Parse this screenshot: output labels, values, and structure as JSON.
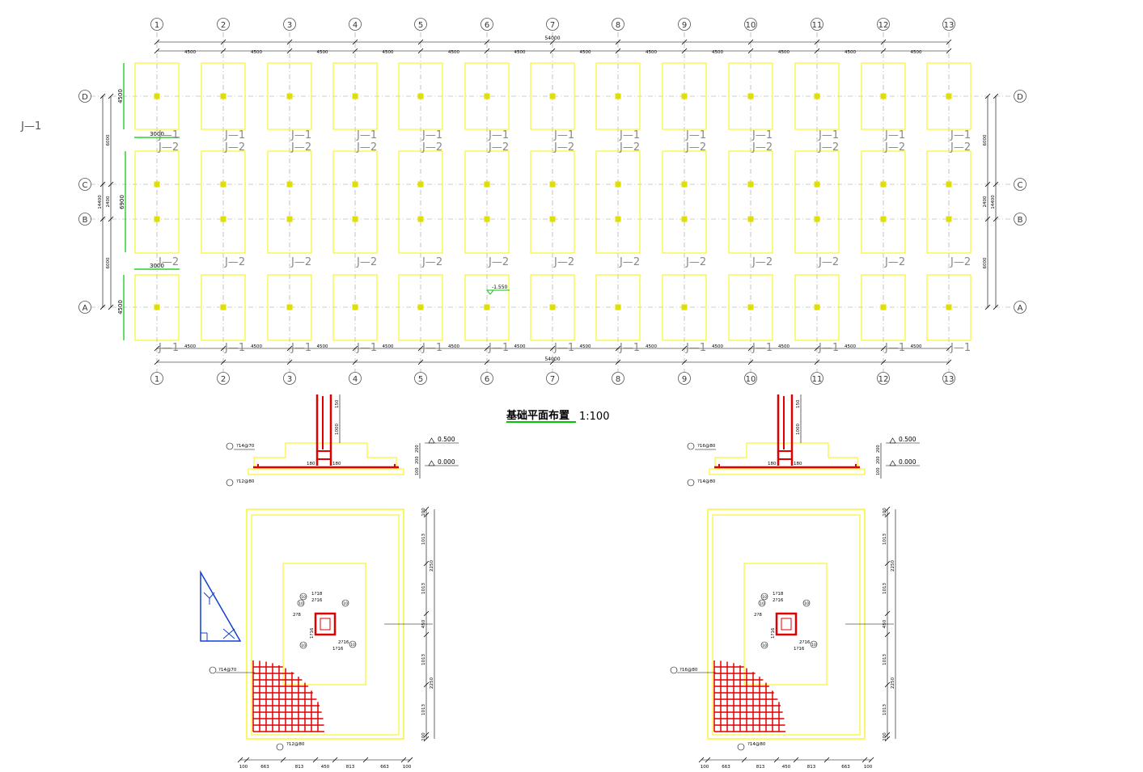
{
  "plan": {
    "side_label": "J—1",
    "axis_x": [
      "1",
      "2",
      "3",
      "4",
      "5",
      "6",
      "7",
      "8",
      "9",
      "10",
      "11",
      "12",
      "13"
    ],
    "axis_y": [
      "D",
      "C",
      "B",
      "A"
    ],
    "bay_dims": [
      "4500",
      "4500",
      "4500",
      "4500",
      "4500",
      "4500",
      "4500",
      "4500",
      "4500",
      "4500",
      "4500",
      "4500"
    ],
    "total_dim": "54000",
    "left_dims": [
      "6000",
      "2400",
      "6000"
    ],
    "left_total": "14400",
    "right_dims": [
      "6000",
      "2400",
      "6000"
    ],
    "right_total": "14400",
    "green_dim_h": "3000",
    "green_dim_v1": "4500",
    "green_dim_v2": "6900",
    "green_dim_v3": "4500",
    "label_j1": "J—1",
    "label_j2": "J—2",
    "elevation_mark": "-1.550"
  },
  "title": {
    "text": "基础平面布置",
    "scale": "1:100"
  },
  "detail_left": {
    "rebar_top": "?14@70",
    "rebar_bottom": "?12@80",
    "rebar_plan_1": "?14@70",
    "rebar_plan_2": "?12@80",
    "elev_1": "0.500",
    "elev_2": "0.000",
    "col_dims": [
      "180",
      "180"
    ],
    "vert_dims": [
      "150",
      "1000"
    ],
    "side_dims": [
      "200",
      "200",
      "100"
    ],
    "bottom_dims": [
      "100",
      "663",
      "813",
      "450",
      "813",
      "663",
      "100"
    ],
    "right_dims": [
      "100",
      "1013",
      "1013",
      "450",
      "1013",
      "1013",
      "100"
    ],
    "right_totals": [
      "2250",
      "2250"
    ],
    "col_labels": [
      "1?18",
      "2?16",
      "2?8",
      "1?16",
      "2?16",
      "1?16"
    ],
    "col_marks": [
      "10",
      "10",
      "10",
      "10",
      "10"
    ]
  },
  "detail_right": {
    "rebar_top": "?16@80",
    "rebar_bottom": "?14@80",
    "rebar_plan_1": "?16@80",
    "rebar_plan_2": "?14@80",
    "elev_1": "0.500",
    "elev_2": "0.000",
    "col_dims": [
      "180",
      "180"
    ],
    "vert_dims": [
      "150",
      "1000"
    ],
    "side_dims": [
      "200",
      "200",
      "100"
    ],
    "bottom_dims": [
      "100",
      "663",
      "813",
      "450",
      "813",
      "663",
      "100"
    ],
    "right_dims": [
      "100",
      "1013",
      "1013",
      "450",
      "1013",
      "1013",
      "100"
    ],
    "right_totals": [
      "2250",
      "2250"
    ],
    "col_labels": [
      "1?18",
      "2?16",
      "2?8",
      "1?16",
      "2?16",
      "1?16"
    ],
    "col_marks": [
      "10",
      "10",
      "10",
      "10",
      "10"
    ]
  },
  "colors": {
    "footing": "#f5f500",
    "column": "#e0e000",
    "rebar": "#e00000",
    "dim": "#000000",
    "green": "#00c800",
    "blue": "#1040d0"
  }
}
